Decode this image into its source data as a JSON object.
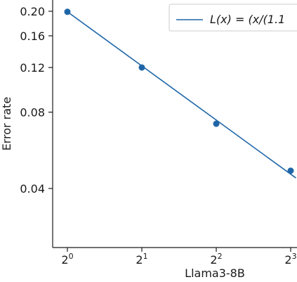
{
  "chart_data": {
    "type": "line",
    "xlabel": "Llama3-8B",
    "ylabel": "Error rate",
    "x_scale": "log2",
    "y_scale": "log",
    "x_ticks": [
      {
        "value": 1,
        "base": "2",
        "exp": "0"
      },
      {
        "value": 2,
        "base": "2",
        "exp": "1"
      },
      {
        "value": 4,
        "base": "2",
        "exp": "2"
      },
      {
        "value": 8,
        "base": "2",
        "exp": "3"
      }
    ],
    "y_ticks": [
      {
        "value": 0.2,
        "label": "0.20"
      },
      {
        "value": 0.16,
        "label": "0.16"
      },
      {
        "value": 0.12,
        "label": "0.12"
      },
      {
        "value": 0.08,
        "label": "0.08"
      },
      {
        "value": 0.04,
        "label": "0.04"
      }
    ],
    "xlim": [
      0.87,
      8.4
    ],
    "ylim": [
      0.029,
      0.21
    ],
    "points": {
      "x": [
        1,
        2,
        4,
        8
      ],
      "y": [
        0.199,
        0.12,
        0.072,
        0.047
      ]
    },
    "fit_line": {
      "x": [
        1,
        8.4
      ],
      "y": [
        0.199,
        0.044
      ]
    },
    "legend": {
      "placement": "top-right",
      "label": "L(x) = (x/(1.1"
    },
    "colors": {
      "series": "#1f66a8",
      "axes": "#1a1a1a",
      "legend_border": "#cccccc"
    }
  }
}
